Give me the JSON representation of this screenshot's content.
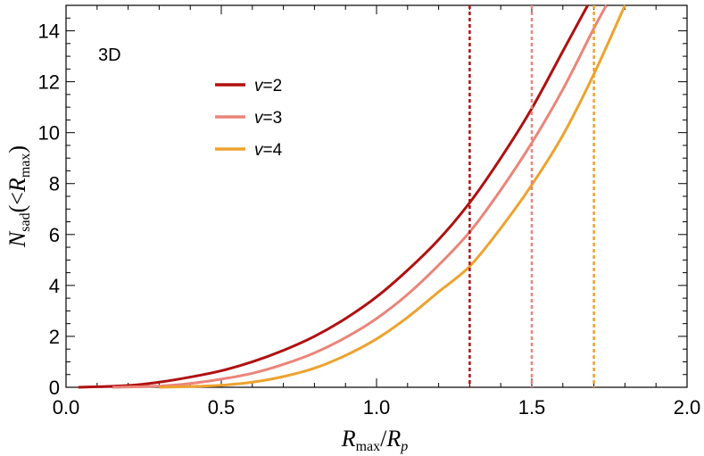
{
  "chart_data": {
    "type": "line",
    "title": "",
    "annotation": "3D",
    "xlabel": {
      "base": "R",
      "sub": "max",
      "sep": "/",
      "base2": "R",
      "sub2": "p"
    },
    "ylabel": {
      "base": "N",
      "sub": "sad",
      "open": "(<",
      "base2": "R",
      "sub2": "max",
      "close": ")"
    },
    "xlim": [
      0.0,
      2.0
    ],
    "ylim": [
      0,
      15
    ],
    "xticks": [
      "0.0",
      "0.5",
      "1.0",
      "1.5",
      "2.0"
    ],
    "yticks": [
      "0",
      "2",
      "4",
      "6",
      "8",
      "10",
      "12",
      "14"
    ],
    "grid": false,
    "legend_position": "upper-left",
    "series": [
      {
        "name": "v=2",
        "var": "v",
        "eq": "=2",
        "color": "#b01010",
        "x": [
          0.04,
          0.2,
          0.3,
          0.4,
          0.5,
          0.6,
          0.7,
          0.8,
          0.9,
          1.0,
          1.1,
          1.2,
          1.3,
          1.4,
          1.5,
          1.6,
          1.68
        ],
        "y": [
          0.0,
          0.07,
          0.2,
          0.4,
          0.65,
          1.0,
          1.45,
          2.0,
          2.7,
          3.55,
          4.6,
          5.8,
          7.25,
          9.0,
          10.95,
          13.2,
          15.0
        ],
        "cutoff": 1.3,
        "cutoff_color": "#b01010"
      },
      {
        "name": "v=3",
        "var": "v",
        "eq": "=3",
        "color": "#ea857a",
        "x": [
          0.15,
          0.3,
          0.4,
          0.5,
          0.6,
          0.7,
          0.8,
          0.9,
          1.0,
          1.1,
          1.2,
          1.3,
          1.4,
          1.5,
          1.6,
          1.7,
          1.74
        ],
        "y": [
          0.0,
          0.05,
          0.15,
          0.32,
          0.55,
          0.9,
          1.35,
          1.95,
          2.7,
          3.65,
          4.8,
          6.1,
          7.75,
          9.6,
          11.7,
          14.1,
          15.0
        ],
        "cutoff": 1.5,
        "cutoff_color": "#ea857a"
      },
      {
        "name": "v=4",
        "var": "v",
        "eq": "=4",
        "color": "#eea22e",
        "x": [
          0.3,
          0.4,
          0.5,
          0.6,
          0.7,
          0.8,
          0.9,
          1.0,
          1.1,
          1.2,
          1.3,
          1.4,
          1.5,
          1.6,
          1.7,
          1.8
        ],
        "y": [
          0.0,
          0.03,
          0.08,
          0.2,
          0.42,
          0.75,
          1.25,
          1.9,
          2.75,
          3.75,
          4.75,
          6.25,
          7.95,
          9.9,
          12.3,
          15.0
        ],
        "cutoff": 1.7,
        "cutoff_color": "#eea22e"
      }
    ]
  }
}
